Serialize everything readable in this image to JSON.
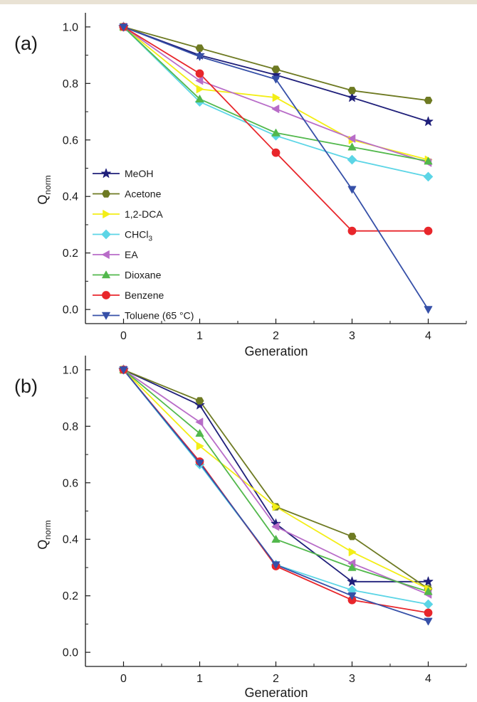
{
  "figure": {
    "top_bar_color": "#e9e2d4",
    "legend_entries": [
      {
        "series": "MeOH",
        "label_main": "MeOH",
        "label_sub": ""
      },
      {
        "series": "Acetone",
        "label_main": "Acetone",
        "label_sub": ""
      },
      {
        "series": "1,2-DCA",
        "label_main": "1,2-DCA",
        "label_sub": ""
      },
      {
        "series": "CHCl3",
        "label_main": "CHCl",
        "label_sub": "3"
      },
      {
        "series": "EA",
        "label_main": "EA",
        "label_sub": ""
      },
      {
        "series": "Dioxane",
        "label_main": "Dioxane",
        "label_sub": ""
      },
      {
        "series": "Benzene",
        "label_main": "Benzene",
        "label_sub": ""
      },
      {
        "series": "Toluene (65 °C)",
        "label_main": "Toluene (65 °C)",
        "label_sub": ""
      }
    ]
  },
  "chart_data": [
    {
      "type": "line",
      "panel_label": "(a)",
      "xlabel": "Generation",
      "ylabel_main": "Q",
      "ylabel_sub": "norm",
      "x": [
        0,
        1,
        2,
        3,
        4
      ],
      "xlim": [
        -0.5,
        4.5
      ],
      "ylim": [
        -0.05,
        1.05
      ],
      "xticks": [
        0,
        1,
        2,
        3,
        4
      ],
      "xtick_labels": [
        "0",
        "1",
        "2",
        "3",
        "4"
      ],
      "yticks": [
        0.0,
        0.2,
        0.4,
        0.6,
        0.8,
        1.0
      ],
      "ytick_labels": [
        "0.0",
        "0.2",
        "0.4",
        "0.6",
        "0.8",
        "1.0"
      ],
      "grid": false,
      "legend": "bottom-left",
      "series": [
        {
          "name": "MeOH",
          "color": "#1f1f7a",
          "marker": "star",
          "values": [
            1.0,
            0.9,
            0.83,
            0.75,
            0.665
          ]
        },
        {
          "name": "Acetone",
          "color": "#6e7a22",
          "marker": "hexagon",
          "values": [
            1.0,
            0.925,
            0.85,
            0.775,
            0.74
          ]
        },
        {
          "name": "1,2-DCA",
          "color": "#f3ee16",
          "marker": "triangle-right",
          "values": [
            1.0,
            0.78,
            0.75,
            0.6,
            0.53
          ]
        },
        {
          "name": "CHCl3",
          "color": "#5cd5e6",
          "marker": "diamond",
          "values": [
            1.0,
            0.735,
            0.615,
            0.53,
            0.47
          ]
        },
        {
          "name": "EA",
          "color": "#b86cc8",
          "marker": "triangle-left",
          "values": [
            1.0,
            0.81,
            0.71,
            0.605,
            0.52
          ]
        },
        {
          "name": "Dioxane",
          "color": "#52b84c",
          "marker": "triangle-up",
          "values": [
            1.0,
            0.745,
            0.625,
            0.575,
            0.525
          ]
        },
        {
          "name": "Benzene",
          "color": "#e8262b",
          "marker": "circle",
          "values": [
            1.0,
            0.835,
            0.555,
            0.278,
            0.278
          ]
        },
        {
          "name": "Toluene (65 °C)",
          "color": "#3650a8",
          "marker": "triangle-down",
          "values": [
            1.0,
            0.895,
            0.815,
            0.425,
            0.0
          ]
        }
      ]
    },
    {
      "type": "line",
      "panel_label": "(b)",
      "xlabel": "Generation",
      "ylabel_main": "Q",
      "ylabel_sub": "norm",
      "x": [
        0,
        1,
        2,
        3,
        4
      ],
      "xlim": [
        -0.5,
        4.5
      ],
      "ylim": [
        -0.05,
        1.05
      ],
      "xticks": [
        0,
        1,
        2,
        3,
        4
      ],
      "xtick_labels": [
        "0",
        "1",
        "2",
        "3",
        "4"
      ],
      "yticks": [
        0.0,
        0.2,
        0.4,
        0.6,
        0.8,
        1.0
      ],
      "ytick_labels": [
        "0.0",
        "0.2",
        "0.4",
        "0.6",
        "0.8",
        "1.0"
      ],
      "grid": false,
      "legend": "none",
      "series": [
        {
          "name": "MeOH",
          "color": "#1f1f7a",
          "marker": "star",
          "values": [
            1.0,
            0.875,
            0.455,
            0.25,
            0.25
          ]
        },
        {
          "name": "Acetone",
          "color": "#6e7a22",
          "marker": "hexagon",
          "values": [
            1.0,
            0.89,
            0.515,
            0.41,
            0.225
          ]
        },
        {
          "name": "1,2-DCA",
          "color": "#f3ee16",
          "marker": "triangle-right",
          "values": [
            1.0,
            0.73,
            0.515,
            0.355,
            0.225
          ]
        },
        {
          "name": "CHCl3",
          "color": "#5cd5e6",
          "marker": "diamond",
          "values": [
            1.0,
            0.665,
            0.31,
            0.22,
            0.17
          ]
        },
        {
          "name": "EA",
          "color": "#b86cc8",
          "marker": "triangle-left",
          "values": [
            1.0,
            0.815,
            0.445,
            0.315,
            0.205
          ]
        },
        {
          "name": "Dioxane",
          "color": "#52b84c",
          "marker": "triangle-up",
          "values": [
            1.0,
            0.775,
            0.4,
            0.3,
            0.215
          ]
        },
        {
          "name": "Benzene",
          "color": "#e8262b",
          "marker": "circle",
          "values": [
            1.0,
            0.675,
            0.305,
            0.185,
            0.14
          ]
        },
        {
          "name": "Toluene (65 °C)",
          "color": "#3650a8",
          "marker": "triangle-down",
          "values": [
            1.0,
            0.67,
            0.31,
            0.2,
            0.11
          ]
        }
      ]
    }
  ]
}
